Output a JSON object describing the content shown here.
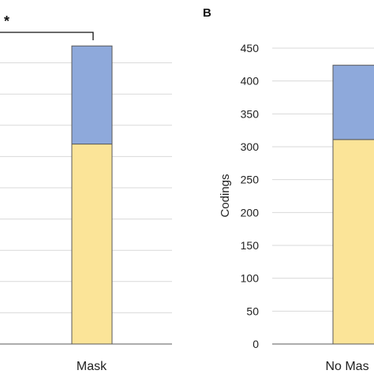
{
  "chart_data": [
    {
      "panel": "",
      "type": "bar",
      "stacked": true,
      "categories": [
        "Mask"
      ],
      "series": [
        {
          "values": [
            320
          ],
          "color": "#FBE498"
        },
        {
          "values": [
            157
          ],
          "color": "#8EA9DB"
        }
      ],
      "significance": "*",
      "grid": true,
      "colors": {
        "grid": "#d9d9d9",
        "bar_edge": "#595959",
        "axis": "#595959"
      }
    },
    {
      "panel": "B",
      "type": "bar",
      "stacked": true,
      "categories": [
        "No Mas"
      ],
      "ylabel": "Codings",
      "ylim": [
        0,
        450
      ],
      "yticks": [
        "0",
        "50",
        "100",
        "150",
        "200",
        "250",
        "300",
        "350",
        "400",
        "450"
      ],
      "series": [
        {
          "values": [
            311
          ],
          "color": "#FBE498"
        },
        {
          "values": [
            113
          ],
          "color": "#8EA9DB"
        }
      ],
      "grid": true,
      "colors": {
        "grid": "#d9d9d9",
        "bar_edge": "#595959",
        "axis": "#595959"
      }
    }
  ]
}
